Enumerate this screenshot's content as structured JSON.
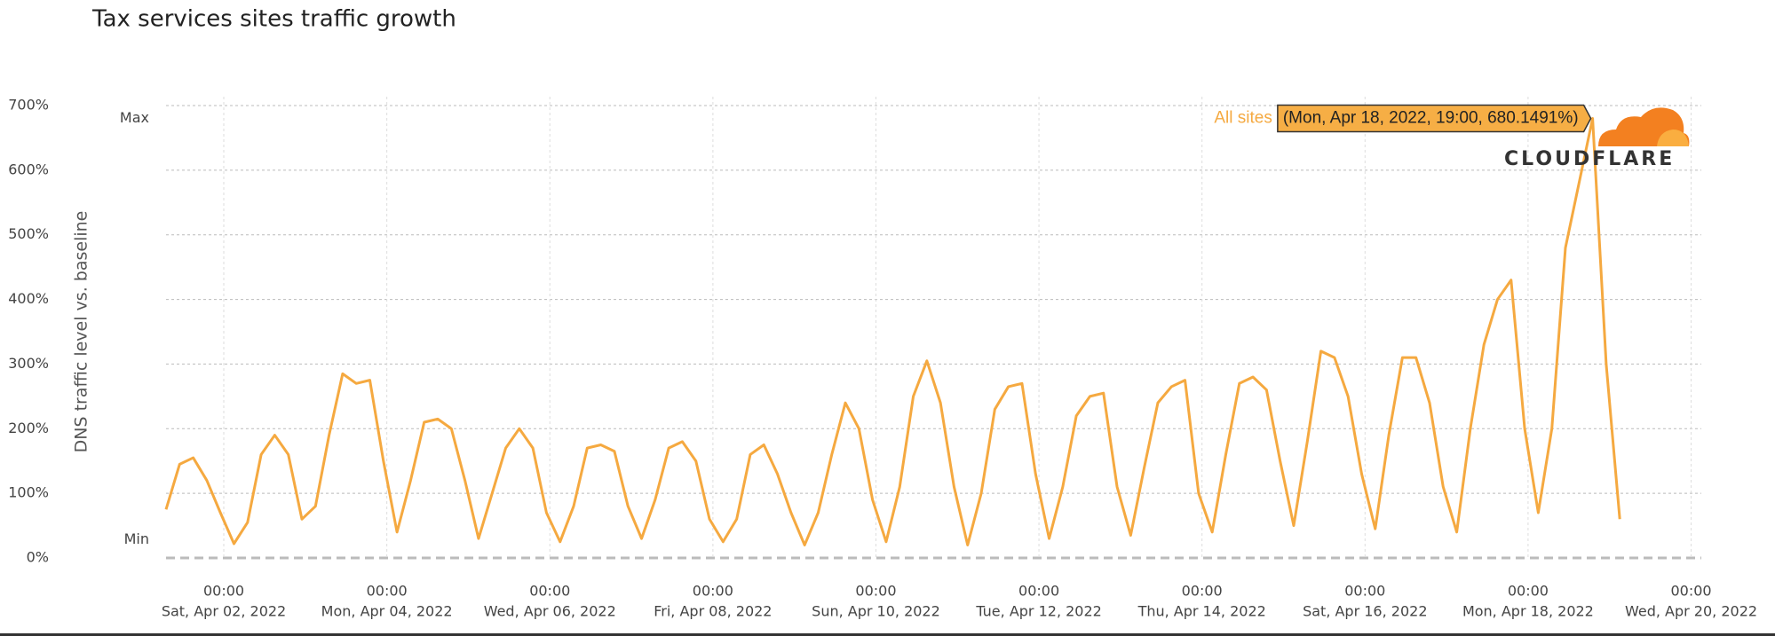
{
  "chart_data": {
    "type": "line",
    "title": "Tax services sites traffic growth",
    "y_label": "DNS traffic level vs. baseline",
    "max_label": "Max",
    "min_label": "Min",
    "logo": "CLOUDFLARE",
    "grid": true,
    "xlim": [
      "2022-04-01 07:00",
      "2022-04-20 03:00"
    ],
    "ylim": [
      0,
      700
    ],
    "yticks": [
      {
        "value": 0,
        "label": "0%"
      },
      {
        "value": 100,
        "label": "100%"
      },
      {
        "value": 200,
        "label": "200%"
      },
      {
        "value": 300,
        "label": "300%"
      },
      {
        "value": 400,
        "label": "400%"
      },
      {
        "value": 500,
        "label": "500%"
      },
      {
        "value": 600,
        "label": "600%"
      },
      {
        "value": 700,
        "label": "700%"
      }
    ],
    "xticks": [
      {
        "value": "2022-04-02 00:00",
        "label": [
          "00:00",
          "Sat, Apr 02, 2022"
        ]
      },
      {
        "value": "2022-04-04 00:00",
        "label": [
          "00:00",
          "Mon, Apr 04, 2022"
        ]
      },
      {
        "value": "2022-04-06 00:00",
        "label": [
          "00:00",
          "Wed, Apr 06, 2022"
        ]
      },
      {
        "value": "2022-04-08 00:00",
        "label": [
          "00:00",
          "Fri, Apr 08, 2022"
        ]
      },
      {
        "value": "2022-04-10 00:00",
        "label": [
          "00:00",
          "Sun, Apr 10, 2022"
        ]
      },
      {
        "value": "2022-04-12 00:00",
        "label": [
          "00:00",
          "Tue, Apr 12, 2022"
        ]
      },
      {
        "value": "2022-04-14 00:00",
        "label": [
          "00:00",
          "Thu, Apr 14, 2022"
        ]
      },
      {
        "value": "2022-04-16 00:00",
        "label": [
          "00:00",
          "Sat, Apr 16, 2022"
        ]
      },
      {
        "value": "2022-04-18 00:00",
        "label": [
          "00:00",
          "Mon, Apr 18, 2022"
        ]
      },
      {
        "value": "2022-04-20 00:00",
        "label": [
          "00:00",
          "Wed, Apr 20, 2022"
        ]
      }
    ],
    "tooltip": {
      "x": "2022-04-18 19:00",
      "value": 680.1491,
      "label": "(Mon, Apr 18, 2022, 19:00, 680.1491%)"
    },
    "x": [
      "2022-04-01 07:00",
      "2022-04-01 11:00",
      "2022-04-01 15:00",
      "2022-04-01 19:00",
      "2022-04-01 23:00",
      "2022-04-02 03:00",
      "2022-04-02 07:00",
      "2022-04-02 11:00",
      "2022-04-02 15:00",
      "2022-04-02 19:00",
      "2022-04-02 23:00",
      "2022-04-03 03:00",
      "2022-04-03 07:00",
      "2022-04-03 11:00",
      "2022-04-03 15:00",
      "2022-04-03 19:00",
      "2022-04-03 23:00",
      "2022-04-04 03:00",
      "2022-04-04 07:00",
      "2022-04-04 11:00",
      "2022-04-04 15:00",
      "2022-04-04 19:00",
      "2022-04-04 23:00",
      "2022-04-05 03:00",
      "2022-04-05 07:00",
      "2022-04-05 11:00",
      "2022-04-05 15:00",
      "2022-04-05 19:00",
      "2022-04-05 23:00",
      "2022-04-06 03:00",
      "2022-04-06 07:00",
      "2022-04-06 11:00",
      "2022-04-06 15:00",
      "2022-04-06 19:00",
      "2022-04-06 23:00",
      "2022-04-07 03:00",
      "2022-04-07 07:00",
      "2022-04-07 11:00",
      "2022-04-07 15:00",
      "2022-04-07 19:00",
      "2022-04-07 23:00",
      "2022-04-08 03:00",
      "2022-04-08 07:00",
      "2022-04-08 11:00",
      "2022-04-08 15:00",
      "2022-04-08 19:00",
      "2022-04-08 23:00",
      "2022-04-09 03:00",
      "2022-04-09 07:00",
      "2022-04-09 11:00",
      "2022-04-09 15:00",
      "2022-04-09 19:00",
      "2022-04-09 23:00",
      "2022-04-10 03:00",
      "2022-04-10 07:00",
      "2022-04-10 11:00",
      "2022-04-10 15:00",
      "2022-04-10 19:00",
      "2022-04-10 23:00",
      "2022-04-11 03:00",
      "2022-04-11 07:00",
      "2022-04-11 11:00",
      "2022-04-11 15:00",
      "2022-04-11 19:00",
      "2022-04-11 23:00",
      "2022-04-12 03:00",
      "2022-04-12 07:00",
      "2022-04-12 11:00",
      "2022-04-12 15:00",
      "2022-04-12 19:00",
      "2022-04-12 23:00",
      "2022-04-13 03:00",
      "2022-04-13 07:00",
      "2022-04-13 11:00",
      "2022-04-13 15:00",
      "2022-04-13 19:00",
      "2022-04-13 23:00",
      "2022-04-14 03:00",
      "2022-04-14 07:00",
      "2022-04-14 11:00",
      "2022-04-14 15:00",
      "2022-04-14 19:00",
      "2022-04-14 23:00",
      "2022-04-15 03:00",
      "2022-04-15 07:00",
      "2022-04-15 11:00",
      "2022-04-15 15:00",
      "2022-04-15 19:00",
      "2022-04-15 23:00",
      "2022-04-16 03:00",
      "2022-04-16 07:00",
      "2022-04-16 11:00",
      "2022-04-16 15:00",
      "2022-04-16 19:00",
      "2022-04-16 23:00",
      "2022-04-17 03:00",
      "2022-04-17 07:00",
      "2022-04-17 11:00",
      "2022-04-17 15:00",
      "2022-04-17 19:00",
      "2022-04-17 23:00",
      "2022-04-18 03:00",
      "2022-04-18 07:00",
      "2022-04-18 11:00",
      "2022-04-18 15:00",
      "2022-04-18 19:00",
      "2022-04-18 23:00",
      "2022-04-19 03:00"
    ],
    "series": [
      {
        "name": "All sites",
        "color": "#f5a940",
        "values": [
          75,
          145,
          155,
          120,
          70,
          22,
          55,
          160,
          190,
          160,
          60,
          80,
          190,
          285,
          270,
          275,
          150,
          40,
          120,
          210,
          215,
          200,
          120,
          30,
          100,
          170,
          200,
          170,
          70,
          25,
          80,
          170,
          175,
          165,
          80,
          30,
          90,
          170,
          180,
          150,
          60,
          25,
          60,
          160,
          175,
          130,
          70,
          20,
          70,
          160,
          240,
          200,
          90,
          25,
          110,
          250,
          305,
          240,
          110,
          20,
          100,
          230,
          265,
          270,
          130,
          30,
          110,
          220,
          250,
          255,
          110,
          35,
          140,
          240,
          265,
          275,
          100,
          40,
          160,
          270,
          280,
          260,
          150,
          50,
          180,
          320,
          310,
          250,
          130,
          45,
          190,
          310,
          310,
          240,
          110,
          40,
          200,
          330,
          400,
          430,
          200,
          70,
          200,
          480,
          580,
          680.1491,
          300,
          60
        ]
      }
    ]
  }
}
